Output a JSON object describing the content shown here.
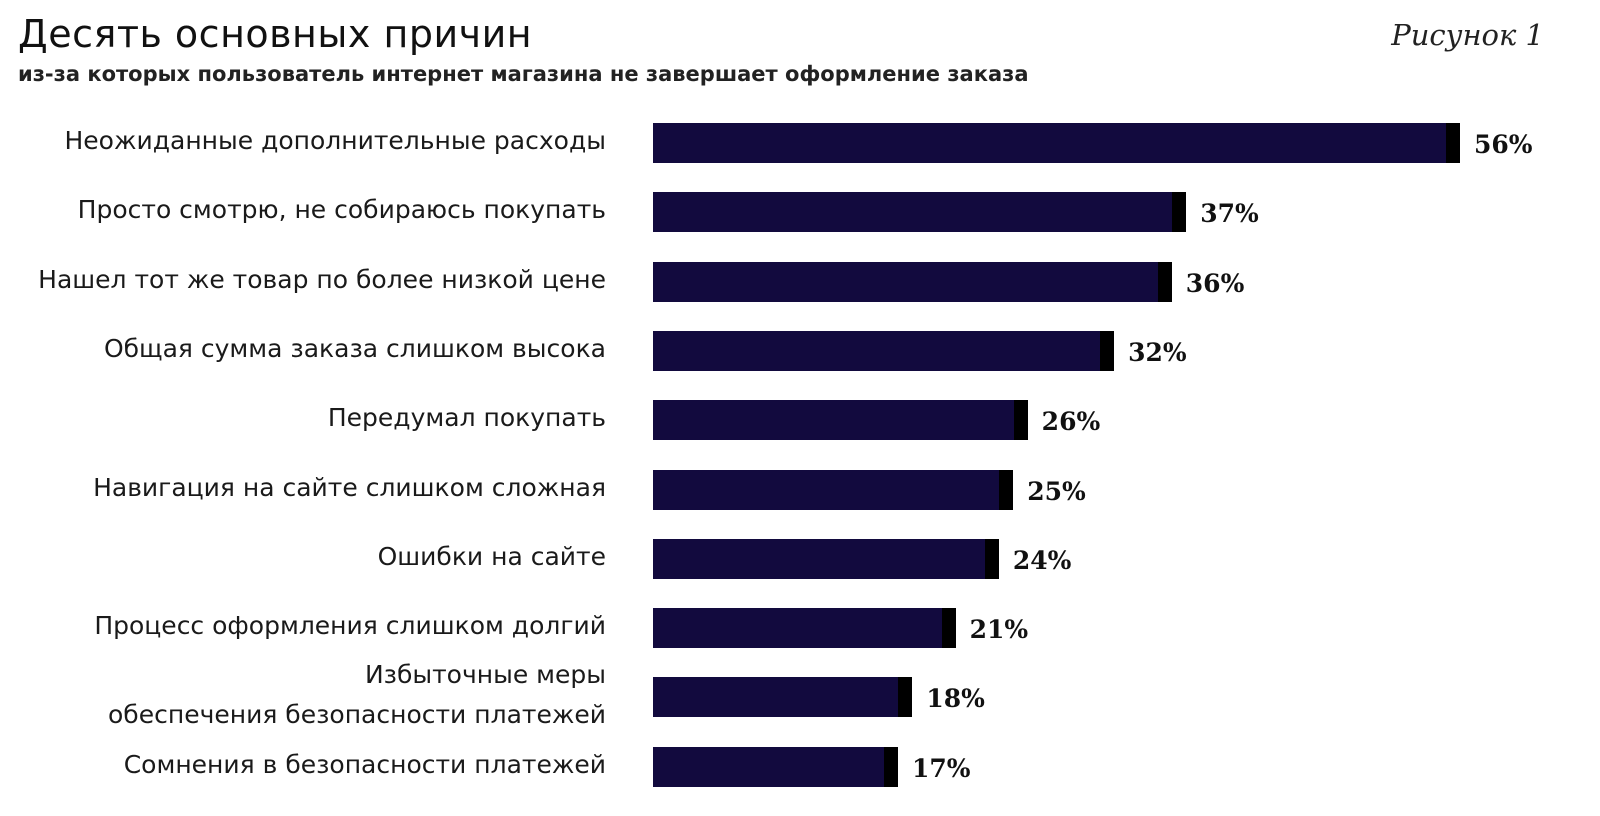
{
  "header": {
    "title": "Десять основных причин",
    "subtitle": "из-за которых пользователь интернет магазина не завершает оформление заказа",
    "figure_label": "Рисунок 1"
  },
  "colors": {
    "bar": "#120a3e",
    "cap": "#000000"
  },
  "chart_data": {
    "type": "bar",
    "orientation": "horizontal",
    "title": "Десять основных причин",
    "subtitle": "из-за которых пользователь интернет магазина не завершает оформление заказа",
    "categories": [
      "Неожиданные дополнительные расходы",
      "Просто смотрю, не собираюсь покупать",
      "Нашел тот же товар по более низкой цене",
      "Общая сумма заказа слишком высока",
      "Передумал покупать",
      "Навигация на сайте слишком сложная",
      "Ошибки на сайте",
      "Процесс оформления слишком долгий",
      "Избыточные меры\nобеспечения безопасности платежей",
      "Сомнения в безопасности платежей"
    ],
    "values": [
      56,
      37,
      36,
      32,
      26,
      25,
      24,
      21,
      18,
      17
    ],
    "labels": [
      "56%",
      "37%",
      "36%",
      "32%",
      "26%",
      "25%",
      "24%",
      "21%",
      "18%",
      "17%"
    ],
    "unit": "%",
    "xlim": [
      0,
      56
    ],
    "grid": false,
    "legend": "none"
  }
}
